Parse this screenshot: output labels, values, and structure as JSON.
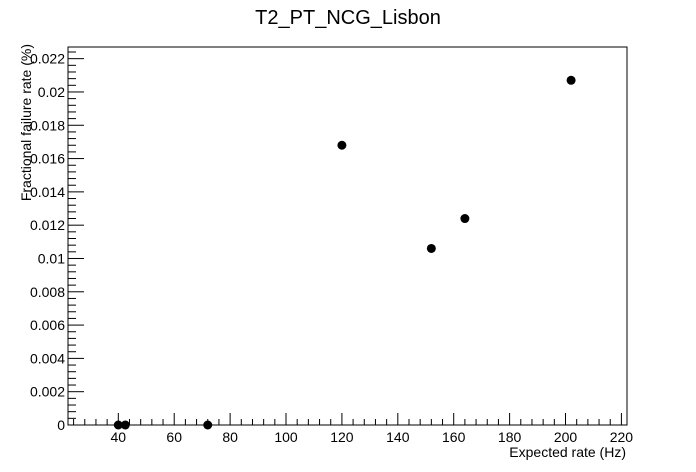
{
  "chart_data": {
    "type": "scatter",
    "title": "T2_PT_NCG_Lisbon",
    "xlabel": "Expected rate (Hz)",
    "ylabel": "Fractional failure rate (%)",
    "xlim": [
      22,
      222
    ],
    "ylim": [
      0,
      0.0227
    ],
    "grid": false,
    "legend": "none",
    "x_ticks": [
      40,
      60,
      80,
      100,
      120,
      140,
      160,
      180,
      200,
      220
    ],
    "x_tick_labels": [
      "40",
      "60",
      "80",
      "100",
      "120",
      "140",
      "160",
      "180",
      "200",
      "220"
    ],
    "y_ticks": [
      0,
      0.002,
      0.004,
      0.006,
      0.008,
      0.01,
      0.012,
      0.014,
      0.016,
      0.018,
      0.02,
      0.022
    ],
    "y_tick_labels": [
      "0",
      "0.002",
      "0.004",
      "0.006",
      "0.008",
      "0.01",
      "0.012",
      "0.014",
      "0.016",
      "0.018",
      "0.02",
      "0.022"
    ],
    "marker_color": "#000000",
    "points": [
      {
        "x": 40,
        "y": 0
      },
      {
        "x": 42.5,
        "y": 0
      },
      {
        "x": 72,
        "y": 0
      },
      {
        "x": 120,
        "y": 0.0168
      },
      {
        "x": 152,
        "y": 0.0106
      },
      {
        "x": 164,
        "y": 0.0124
      },
      {
        "x": 202,
        "y": 0.0207
      }
    ]
  }
}
